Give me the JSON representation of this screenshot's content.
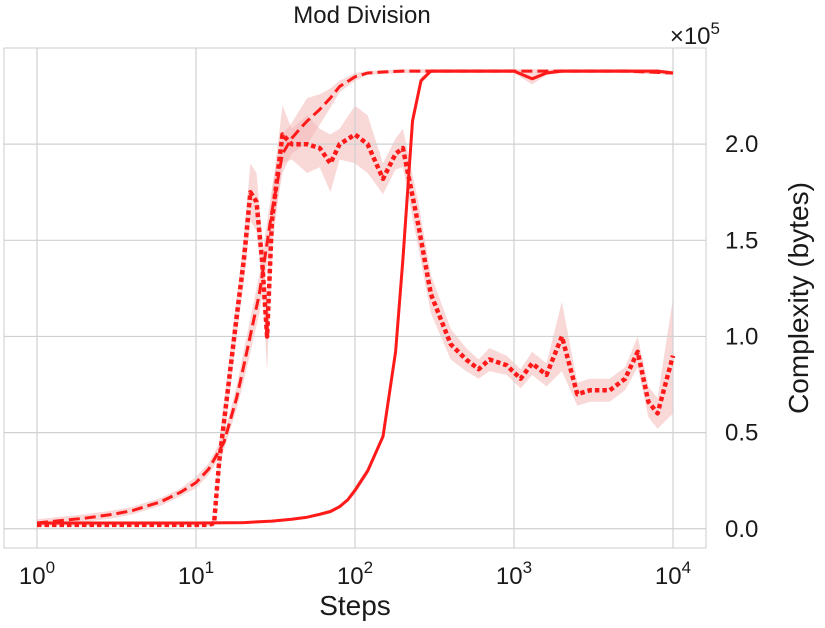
{
  "chart_data": {
    "type": "line",
    "title": "Mod Division",
    "xlabel": "Steps",
    "ylabel": "Complexity (bytes)",
    "x_scale": "log",
    "xlim": [
      1,
      10000
    ],
    "x_ticks": [
      1,
      10,
      100,
      1000,
      10000
    ],
    "x_tick_base": "10",
    "x_tick_exponents": [
      "0",
      "1",
      "2",
      "3",
      "4"
    ],
    "y_axis_side": "right",
    "y_multiplier": "×10",
    "y_multiplier_exponent": "5",
    "ylim": [
      -0.1,
      2.5
    ],
    "y_ticks": [
      0.0,
      0.5,
      1.0,
      1.5,
      2.0
    ],
    "y_tick_labels": [
      "0.0",
      "0.5",
      "1.0",
      "1.5",
      "2.0"
    ],
    "grid": true,
    "color": "#ff1a1a",
    "band_color": "#f4b8b8",
    "series": [
      {
        "style": "dashed",
        "x": [
          1,
          1.5,
          2,
          3,
          4,
          5,
          6,
          8,
          10,
          12,
          15,
          18,
          20,
          25,
          30,
          35,
          40,
          45,
          50,
          60,
          70,
          80,
          100,
          120,
          150,
          200,
          300,
          500,
          1000,
          2000,
          5000,
          10000
        ],
        "y": [
          0.03,
          0.045,
          0.055,
          0.075,
          0.095,
          0.12,
          0.14,
          0.19,
          0.24,
          0.31,
          0.45,
          0.68,
          0.85,
          1.22,
          1.65,
          1.95,
          2.03,
          2.08,
          2.12,
          2.18,
          2.24,
          2.3,
          2.35,
          2.37,
          2.375,
          2.38,
          2.38,
          2.38,
          2.38,
          2.38,
          2.38,
          2.37
        ],
        "band": [
          0.02,
          0.02,
          0.02,
          0.02,
          0.02,
          0.02,
          0.02,
          0.02,
          0.03,
          0.03,
          0.04,
          0.06,
          0.08,
          0.1,
          0.12,
          0.1,
          0.08,
          0.1,
          0.12,
          0.08,
          0.05,
          0.03,
          0.02,
          0.01,
          0.01,
          0.01,
          0.01,
          0.01,
          0.01,
          0.01,
          0.01,
          0.01
        ]
      },
      {
        "style": "solid",
        "x": [
          1,
          2,
          5,
          10,
          20,
          30,
          40,
          50,
          60,
          70,
          80,
          90,
          100,
          120,
          150,
          180,
          200,
          230,
          260,
          300,
          400,
          600,
          1000,
          1300,
          1600,
          2000,
          3000,
          5000,
          8000,
          10000
        ],
        "y": [
          0.03,
          0.03,
          0.03,
          0.03,
          0.032,
          0.04,
          0.05,
          0.06,
          0.075,
          0.09,
          0.115,
          0.15,
          0.2,
          0.3,
          0.48,
          0.92,
          1.4,
          2.12,
          2.33,
          2.38,
          2.38,
          2.38,
          2.38,
          2.34,
          2.37,
          2.38,
          2.38,
          2.38,
          2.38,
          2.37
        ],
        "band": [
          0.005,
          0.005,
          0.005,
          0.005,
          0.005,
          0.005,
          0.005,
          0.005,
          0.01,
          0.01,
          0.01,
          0.01,
          0.02,
          0.02,
          0.02,
          0.03,
          0.04,
          0.04,
          0.02,
          0.01,
          0.01,
          0.01,
          0.01,
          0.03,
          0.01,
          0.01,
          0.01,
          0.01,
          0.01,
          0.01
        ]
      },
      {
        "style": "dotted",
        "x": [
          1,
          2,
          5,
          10,
          12,
          13,
          14,
          16,
          18,
          20,
          22,
          24,
          26,
          28,
          30,
          35,
          40,
          50,
          60,
          70,
          80,
          100,
          120,
          150,
          180,
          200,
          250,
          300,
          400,
          500,
          600,
          700,
          900,
          1100,
          1300,
          1600,
          2000,
          2500,
          3000,
          4000,
          5000,
          6000,
          7000,
          8000,
          10000
        ],
        "y": [
          0.02,
          0.02,
          0.02,
          0.02,
          0.02,
          0.03,
          0.35,
          0.75,
          1.1,
          1.4,
          1.75,
          1.7,
          1.4,
          1.0,
          1.6,
          2.05,
          2.0,
          2.0,
          1.98,
          1.9,
          2.0,
          2.05,
          2.0,
          1.82,
          1.95,
          1.98,
          1.58,
          1.22,
          0.96,
          0.88,
          0.83,
          0.88,
          0.85,
          0.78,
          0.86,
          0.8,
          1.0,
          0.7,
          0.72,
          0.72,
          0.78,
          0.92,
          0.66,
          0.6,
          0.9
        ],
        "band": [
          0.005,
          0.005,
          0.005,
          0.005,
          0.005,
          0.02,
          0.1,
          0.1,
          0.1,
          0.12,
          0.15,
          0.15,
          0.12,
          0.18,
          0.15,
          0.15,
          0.08,
          0.15,
          0.1,
          0.15,
          0.08,
          0.15,
          0.15,
          0.08,
          0.08,
          0.1,
          0.12,
          0.1,
          0.08,
          0.06,
          0.05,
          0.06,
          0.05,
          0.05,
          0.06,
          0.06,
          0.18,
          0.06,
          0.06,
          0.06,
          0.06,
          0.08,
          0.08,
          0.08,
          0.3
        ]
      }
    ]
  }
}
